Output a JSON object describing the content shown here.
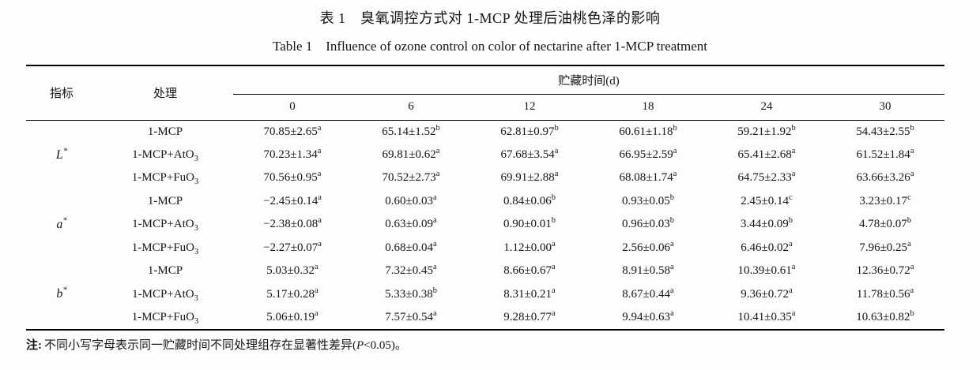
{
  "titles": {
    "zh": "表 1　臭氧调控方式对 1-MCP 处理后油桃色泽的影响",
    "en": "Table 1　Influence of ozone control on color of nectarine after 1-MCP treatment"
  },
  "table": {
    "indicator_header": "指标",
    "treatment_header": "处理",
    "storage_header": "贮藏时间(d)",
    "time_labels": [
      "0",
      "6",
      "12",
      "18",
      "24",
      "30"
    ],
    "groups": [
      {
        "base": "L",
        "sup": "*"
      },
      {
        "base": "a",
        "sup": "*"
      },
      {
        "base": "b",
        "sup": "*"
      }
    ],
    "rows": [
      {
        "treatment": "1-MCP",
        "treatment_sub": "",
        "cells": [
          {
            "v": "70.85±2.65",
            "s": "a"
          },
          {
            "v": "65.14±1.52",
            "s": "b"
          },
          {
            "v": "62.81±0.97",
            "s": "b"
          },
          {
            "v": "60.61±1.18",
            "s": "b"
          },
          {
            "v": "59.21±1.92",
            "s": "b"
          },
          {
            "v": "54.43±2.55",
            "s": "b"
          }
        ]
      },
      {
        "treatment": "1-MCP+AtO",
        "treatment_sub": "3",
        "cells": [
          {
            "v": "70.23±1.34",
            "s": "a"
          },
          {
            "v": "69.81±0.62",
            "s": "a"
          },
          {
            "v": "67.68±3.54",
            "s": "a"
          },
          {
            "v": "66.95±2.59",
            "s": "a"
          },
          {
            "v": "65.41±2.68",
            "s": "a"
          },
          {
            "v": "61.52±1.84",
            "s": "a"
          }
        ]
      },
      {
        "treatment": "1-MCP+FuO",
        "treatment_sub": "3",
        "cells": [
          {
            "v": "70.56±0.95",
            "s": "a"
          },
          {
            "v": "70.52±2.73",
            "s": "a"
          },
          {
            "v": "69.91±2.88",
            "s": "a"
          },
          {
            "v": "68.08±1.74",
            "s": "a"
          },
          {
            "v": "64.75±2.33",
            "s": "a"
          },
          {
            "v": "63.66±3.26",
            "s": "a"
          }
        ]
      },
      {
        "treatment": "1-MCP",
        "treatment_sub": "",
        "cells": [
          {
            "v": "−2.45±0.14",
            "s": "a"
          },
          {
            "v": "0.60±0.03",
            "s": "a"
          },
          {
            "v": "0.84±0.06",
            "s": "b"
          },
          {
            "v": "0.93±0.05",
            "s": "b"
          },
          {
            "v": "2.45±0.14",
            "s": "c"
          },
          {
            "v": "3.23±0.17",
            "s": "c"
          }
        ]
      },
      {
        "treatment": "1-MCP+AtO",
        "treatment_sub": "3",
        "cells": [
          {
            "v": "−2.38±0.08",
            "s": "a"
          },
          {
            "v": "0.63±0.09",
            "s": "a"
          },
          {
            "v": "0.90±0.01",
            "s": "b"
          },
          {
            "v": "0.96±0.03",
            "s": "b"
          },
          {
            "v": "3.44±0.09",
            "s": "b"
          },
          {
            "v": "4.78±0.07",
            "s": "b"
          }
        ]
      },
      {
        "treatment": "1-MCP+FuO",
        "treatment_sub": "3",
        "cells": [
          {
            "v": "−2.27±0.07",
            "s": "a"
          },
          {
            "v": "0.68±0.04",
            "s": "a"
          },
          {
            "v": "1.12±0.00",
            "s": "a"
          },
          {
            "v": "2.56±0.06",
            "s": "a"
          },
          {
            "v": "6.46±0.02",
            "s": "a"
          },
          {
            "v": "7.96±0.25",
            "s": "a"
          }
        ]
      },
      {
        "treatment": "1-MCP",
        "treatment_sub": "",
        "cells": [
          {
            "v": "5.03±0.32",
            "s": "a"
          },
          {
            "v": "7.32±0.45",
            "s": "a"
          },
          {
            "v": "8.66±0.67",
            "s": "a"
          },
          {
            "v": "8.91±0.58",
            "s": "a"
          },
          {
            "v": "10.39±0.61",
            "s": "a"
          },
          {
            "v": "12.36±0.72",
            "s": "a"
          }
        ]
      },
      {
        "treatment": "1-MCP+AtO",
        "treatment_sub": "3",
        "cells": [
          {
            "v": "5.17±0.28",
            "s": "a"
          },
          {
            "v": "5.33±0.38",
            "s": "b"
          },
          {
            "v": "8.31±0.21",
            "s": "a"
          },
          {
            "v": "8.67±0.44",
            "s": "a"
          },
          {
            "v": "9.36±0.72",
            "s": "a"
          },
          {
            "v": "11.78±0.56",
            "s": "a"
          }
        ]
      },
      {
        "treatment": "1-MCP+FuO",
        "treatment_sub": "3",
        "cells": [
          {
            "v": "5.06±0.19",
            "s": "a"
          },
          {
            "v": "7.57±0.54",
            "s": "a"
          },
          {
            "v": "9.28±0.77",
            "s": "a"
          },
          {
            "v": "9.94±0.63",
            "s": "a"
          },
          {
            "v": "10.41±0.35",
            "s": "a"
          },
          {
            "v": "10.63±0.82",
            "s": "b"
          }
        ]
      }
    ]
  },
  "note": {
    "label": "注:",
    "text_before_p": "不同小写字母表示同一贮藏时间不同处理组存在显著性差异(",
    "p": "P",
    "text_after_p": "<0.05)。"
  },
  "colors": {
    "text": "#1a1a1a",
    "rule": "#000000",
    "background": "#fdfdfd"
  }
}
